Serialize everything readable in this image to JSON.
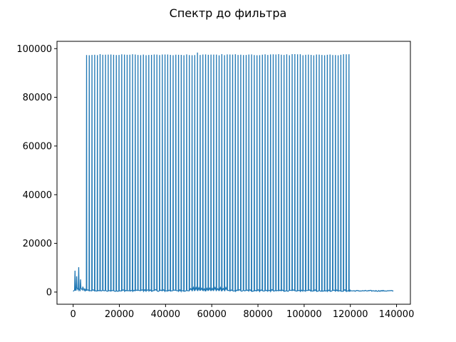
{
  "chart_data": {
    "type": "line",
    "title": "Спектр до фильтра",
    "xlabel": "",
    "ylabel": "",
    "xlim": [
      -7000,
      146000
    ],
    "ylim": [
      -5000,
      103000
    ],
    "xticks": [
      0,
      20000,
      40000,
      60000,
      80000,
      100000,
      120000,
      140000
    ],
    "xtick_labels": [
      "0",
      "20000",
      "40000",
      "60000",
      "80000",
      "100000",
      "120000",
      "140000"
    ],
    "yticks": [
      0,
      20000,
      40000,
      60000,
      80000,
      100000
    ],
    "ytick_labels": [
      "0",
      "20000",
      "40000",
      "60000",
      "80000",
      "100000"
    ],
    "grid": false,
    "series": [
      {
        "color": "#1f77b4",
        "x_range": [
          0,
          138600
        ],
        "low_frequency_bursts": [
          {
            "x": 800,
            "y": 8800
          },
          {
            "x": 1500,
            "y": 6500
          },
          {
            "x": 2400,
            "y": 10200
          },
          {
            "x": 3200,
            "y": 5200
          },
          {
            "x": 4200,
            "y": 2200
          }
        ],
        "comb": {
          "start": 5800,
          "end": 119400,
          "peak_count": 98,
          "peak_value": 97500,
          "max_peak": {
            "x": 54300,
            "y": 98400
          },
          "baseline": 300
        },
        "tail": {
          "start": 119400,
          "end": 138600,
          "level": 500
        }
      }
    ]
  }
}
